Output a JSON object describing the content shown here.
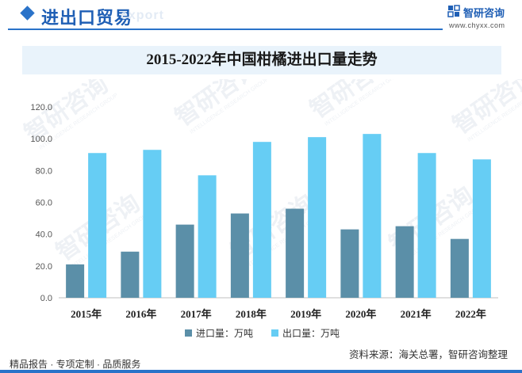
{
  "header": {
    "section_title": "进出口贸易",
    "ghost_text": "export",
    "brand_name": "智研咨询",
    "brand_url": "www.chyxx.com"
  },
  "chart_data": {
    "type": "bar",
    "title": "2015-2022年中国柑橘进出口量走势",
    "categories": [
      "2015年",
      "2016年",
      "2017年",
      "2018年",
      "2019年",
      "2020年",
      "2021年",
      "2022年"
    ],
    "series": [
      {
        "name": "进口量：万吨",
        "color": "#5b8fa8",
        "values": [
          21,
          29,
          46,
          53,
          56,
          43,
          45,
          37
        ]
      },
      {
        "name": "出口量：万吨",
        "color": "#66cdf4",
        "values": [
          91,
          93,
          77,
          98,
          101,
          103,
          91,
          87
        ]
      }
    ],
    "yticks": [
      "0.0",
      "20.0",
      "40.0",
      "60.0",
      "80.0",
      "100.0",
      "120.0"
    ],
    "ylim": [
      0,
      120
    ],
    "grid": false,
    "legend_position": "bottom"
  },
  "footer": {
    "left_text": "精品报告 · 专项定制 · 品质服务",
    "source_text": "资料来源：海关总署，智研咨询整理"
  },
  "watermark": {
    "text": "智研咨询",
    "subtext": "INTELLIGENCE RESEARCH GROUP"
  }
}
